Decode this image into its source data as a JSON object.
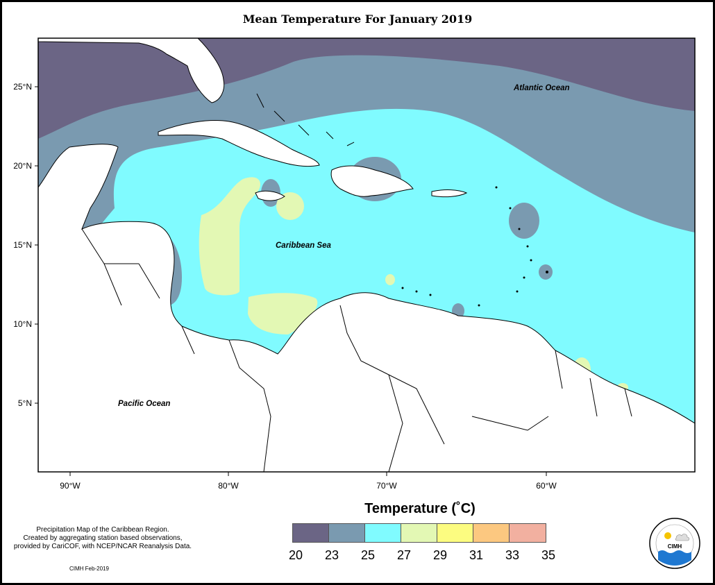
{
  "title": "Mean Temperature For January 2019",
  "map": {
    "lat_ticks": [
      "25°N",
      "20°N",
      "15°N",
      "10°N",
      "5°N"
    ],
    "lon_ticks": [
      "90°W",
      "80°W",
      "70°W",
      "60°W"
    ],
    "labels": {
      "atlantic": "Atlantic Ocean",
      "caribbean": "Caribbean Sea",
      "pacific": "Pacific Ocean"
    }
  },
  "legend": {
    "title": "Temperature (˚C)",
    "labels": [
      "20",
      "23",
      "25",
      "27",
      "29",
      "31",
      "33",
      "35"
    ],
    "colors": [
      "#6b6585",
      "#7a9ab0",
      "#80fbff",
      "#e3f8b4",
      "#fcfc80",
      "#fcc880",
      "#f2b0a0"
    ]
  },
  "description": [
    "Precipitation Map of the Caribbean Region.",
    "Created by aggregating station based observations,",
    "provided by CariCOF, with NCEP/NCAR Reanalysis Data."
  ],
  "credit": "CIMH Feb-2019",
  "logo": {
    "text": "CIMH"
  }
}
